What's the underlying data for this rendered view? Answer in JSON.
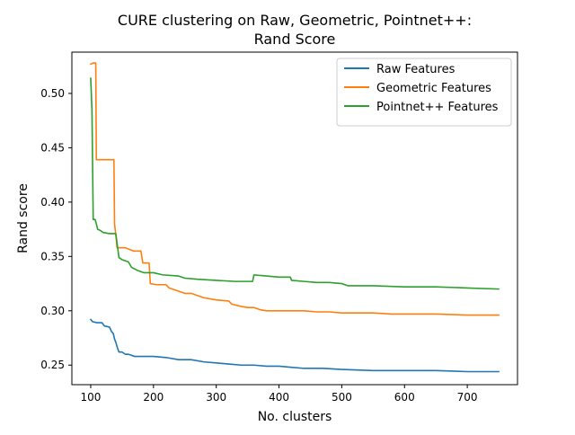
{
  "chart_data": {
    "type": "line",
    "title_line1": "CURE clustering on Raw, Geometric, Pointnet++:",
    "title_line2": "Rand Score",
    "xlabel": "No. clusters",
    "ylabel": "Rand score",
    "xlim": [
      70,
      780
    ],
    "ylim": [
      0.232,
      0.538
    ],
    "x_ticks": [
      100,
      200,
      300,
      400,
      500,
      600,
      700
    ],
    "y_ticks": [
      0.25,
      0.3,
      0.35,
      0.4,
      0.45,
      0.5
    ],
    "y_tick_labels": [
      "0.25",
      "0.30",
      "0.35",
      "0.40",
      "0.45",
      "0.50"
    ],
    "legend_position": "top-right",
    "series": [
      {
        "name": "Raw Features",
        "color": "#1f77b4",
        "points": [
          [
            100,
            0.292
          ],
          [
            103,
            0.29
          ],
          [
            110,
            0.289
          ],
          [
            118,
            0.289
          ],
          [
            122,
            0.286
          ],
          [
            130,
            0.285
          ],
          [
            133,
            0.281
          ],
          [
            136,
            0.279
          ],
          [
            138,
            0.274
          ],
          [
            140,
            0.271
          ],
          [
            142,
            0.267
          ],
          [
            145,
            0.262
          ],
          [
            150,
            0.262
          ],
          [
            155,
            0.26
          ],
          [
            160,
            0.26
          ],
          [
            170,
            0.258
          ],
          [
            190,
            0.258
          ],
          [
            200,
            0.258
          ],
          [
            220,
            0.257
          ],
          [
            240,
            0.255
          ],
          [
            260,
            0.255
          ],
          [
            280,
            0.253
          ],
          [
            300,
            0.252
          ],
          [
            320,
            0.251
          ],
          [
            340,
            0.25
          ],
          [
            360,
            0.25
          ],
          [
            380,
            0.249
          ],
          [
            400,
            0.249
          ],
          [
            420,
            0.248
          ],
          [
            440,
            0.247
          ],
          [
            470,
            0.247
          ],
          [
            500,
            0.246
          ],
          [
            550,
            0.245
          ],
          [
            600,
            0.245
          ],
          [
            650,
            0.245
          ],
          [
            700,
            0.244
          ],
          [
            750,
            0.244
          ]
        ]
      },
      {
        "name": "Geometric Features",
        "color": "#ff7f0e",
        "points": [
          [
            100,
            0.527
          ],
          [
            104,
            0.528
          ],
          [
            108,
            0.528
          ],
          [
            109,
            0.439
          ],
          [
            115,
            0.439
          ],
          [
            120,
            0.439
          ],
          [
            125,
            0.439
          ],
          [
            130,
            0.439
          ],
          [
            137,
            0.439
          ],
          [
            138,
            0.38
          ],
          [
            140,
            0.37
          ],
          [
            142,
            0.358
          ],
          [
            155,
            0.358
          ],
          [
            168,
            0.355
          ],
          [
            180,
            0.355
          ],
          [
            183,
            0.344
          ],
          [
            193,
            0.344
          ],
          [
            195,
            0.325
          ],
          [
            205,
            0.324
          ],
          [
            220,
            0.324
          ],
          [
            225,
            0.321
          ],
          [
            240,
            0.318
          ],
          [
            250,
            0.316
          ],
          [
            260,
            0.316
          ],
          [
            280,
            0.312
          ],
          [
            300,
            0.31
          ],
          [
            320,
            0.309
          ],
          [
            325,
            0.306
          ],
          [
            340,
            0.304
          ],
          [
            350,
            0.303
          ],
          [
            360,
            0.303
          ],
          [
            370,
            0.301
          ],
          [
            380,
            0.3
          ],
          [
            400,
            0.3
          ],
          [
            420,
            0.3
          ],
          [
            440,
            0.3
          ],
          [
            460,
            0.299
          ],
          [
            480,
            0.299
          ],
          [
            500,
            0.298
          ],
          [
            520,
            0.298
          ],
          [
            550,
            0.298
          ],
          [
            580,
            0.297
          ],
          [
            600,
            0.297
          ],
          [
            650,
            0.297
          ],
          [
            700,
            0.296
          ],
          [
            750,
            0.296
          ]
        ]
      },
      {
        "name": "Pointnet++ Features",
        "color": "#2ca02c",
        "points": [
          [
            100,
            0.514
          ],
          [
            102,
            0.485
          ],
          [
            104,
            0.384
          ],
          [
            107,
            0.384
          ],
          [
            109,
            0.38
          ],
          [
            111,
            0.375
          ],
          [
            115,
            0.374
          ],
          [
            120,
            0.372
          ],
          [
            130,
            0.371
          ],
          [
            140,
            0.371
          ],
          [
            145,
            0.349
          ],
          [
            150,
            0.347
          ],
          [
            160,
            0.345
          ],
          [
            165,
            0.34
          ],
          [
            175,
            0.337
          ],
          [
            180,
            0.336
          ],
          [
            185,
            0.335
          ],
          [
            200,
            0.335
          ],
          [
            215,
            0.333
          ],
          [
            240,
            0.332
          ],
          [
            250,
            0.33
          ],
          [
            270,
            0.329
          ],
          [
            300,
            0.328
          ],
          [
            330,
            0.327
          ],
          [
            358,
            0.327
          ],
          [
            360,
            0.333
          ],
          [
            380,
            0.332
          ],
          [
            400,
            0.331
          ],
          [
            418,
            0.331
          ],
          [
            420,
            0.328
          ],
          [
            440,
            0.327
          ],
          [
            460,
            0.326
          ],
          [
            480,
            0.326
          ],
          [
            500,
            0.325
          ],
          [
            510,
            0.323
          ],
          [
            550,
            0.323
          ],
          [
            600,
            0.322
          ],
          [
            650,
            0.322
          ],
          [
            700,
            0.321
          ],
          [
            750,
            0.32
          ]
        ]
      }
    ]
  }
}
